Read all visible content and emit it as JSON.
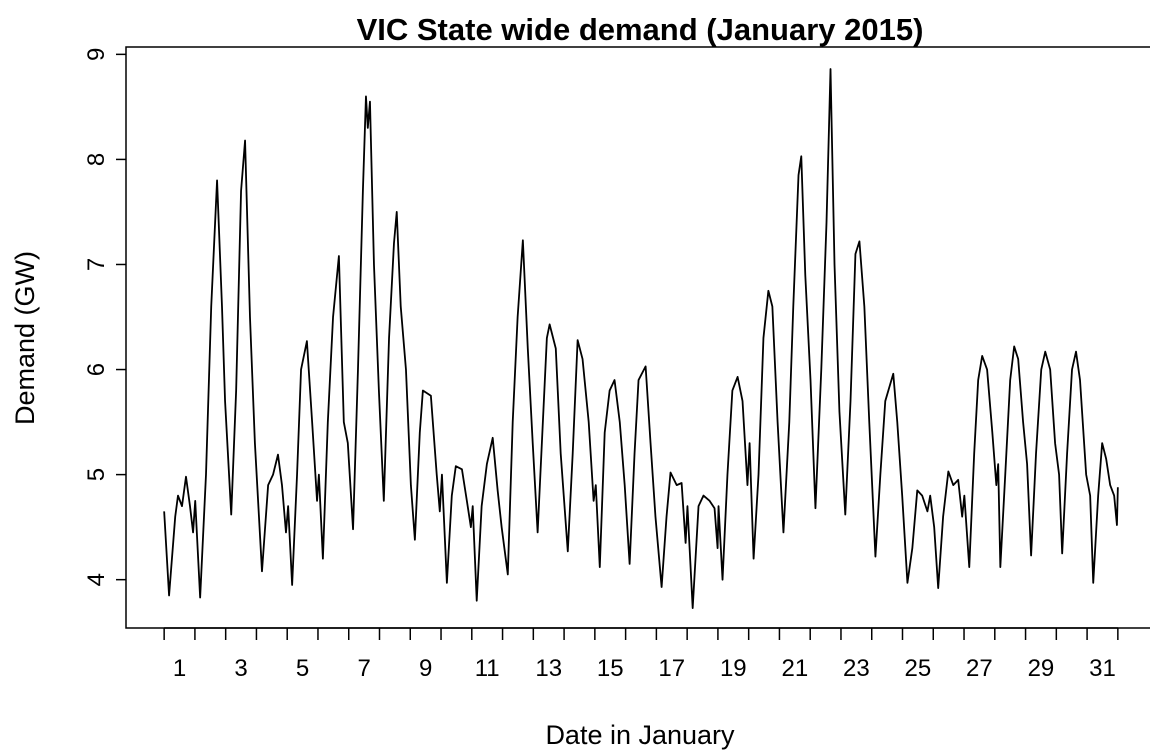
{
  "chart_data": {
    "type": "line",
    "title": "VIC State wide demand (January 2015)",
    "x_label": "Date in January",
    "y_label": "Demand (GW)",
    "xlim": [
      -0.24,
      33.24
    ],
    "ylim": [
      3.54,
      9.07
    ],
    "yticks": [
      4,
      5,
      6,
      7,
      8,
      9
    ],
    "xtick_marks": [
      1,
      2,
      3,
      4,
      5,
      6,
      7,
      8,
      9,
      10,
      11,
      12,
      13,
      14,
      15,
      16,
      17,
      18,
      19,
      20,
      21,
      22,
      23,
      24,
      25,
      26,
      27,
      28,
      29,
      30,
      31,
      32
    ],
    "xticks": [
      {
        "value": 1.5,
        "label": "1"
      },
      {
        "value": 3.5,
        "label": "3"
      },
      {
        "value": 5.5,
        "label": "5"
      },
      {
        "value": 7.5,
        "label": "7"
      },
      {
        "value": 9.5,
        "label": "9"
      },
      {
        "value": 11.5,
        "label": "11"
      },
      {
        "value": 13.5,
        "label": "13"
      },
      {
        "value": 15.5,
        "label": "15"
      },
      {
        "value": 17.5,
        "label": "17"
      },
      {
        "value": 19.5,
        "label": "19"
      },
      {
        "value": 21.5,
        "label": "21"
      },
      {
        "value": 23.5,
        "label": "23"
      },
      {
        "value": 25.5,
        "label": "25"
      },
      {
        "value": 27.5,
        "label": "27"
      },
      {
        "value": 29.5,
        "label": "29"
      },
      {
        "value": 31.5,
        "label": "31"
      }
    ],
    "series": [
      {
        "color": "#000000",
        "x": [
          1.0,
          1.16,
          1.36,
          1.45,
          1.58,
          1.71,
          1.84,
          1.94,
          2.01,
          2.17,
          2.36,
          2.53,
          2.72,
          2.88,
          2.98,
          3.18,
          3.34,
          3.5,
          3.63,
          3.79,
          3.95,
          4.18,
          4.38,
          4.54,
          4.7,
          4.83,
          4.96,
          5.03,
          5.16,
          5.32,
          5.45,
          5.64,
          5.81,
          5.97,
          6.03,
          6.16,
          6.32,
          6.49,
          6.68,
          6.84,
          6.97,
          7.14,
          7.3,
          7.46,
          7.56,
          7.62,
          7.69,
          7.82,
          7.98,
          8.14,
          8.31,
          8.47,
          8.56,
          8.69,
          8.86,
          9.02,
          9.15,
          9.31,
          9.41,
          9.67,
          9.86,
          9.96,
          10.03,
          10.19,
          10.35,
          10.48,
          10.68,
          10.84,
          10.97,
          11.03,
          11.16,
          11.32,
          11.49,
          11.68,
          11.84,
          11.97,
          12.17,
          12.33,
          12.49,
          12.66,
          12.82,
          12.98,
          13.14,
          13.31,
          13.44,
          13.53,
          13.73,
          13.89,
          14.12,
          14.28,
          14.44,
          14.6,
          14.8,
          14.96,
          15.03,
          15.16,
          15.32,
          15.48,
          15.64,
          15.81,
          15.97,
          16.13,
          16.29,
          16.42,
          16.65,
          16.81,
          16.97,
          17.17,
          17.33,
          17.46,
          17.66,
          17.82,
          17.95,
          18.01,
          18.18,
          18.37,
          18.53,
          18.73,
          18.89,
          18.99,
          19.02,
          19.15,
          19.31,
          19.47,
          19.64,
          19.8,
          19.96,
          20.03,
          20.16,
          20.32,
          20.48,
          20.64,
          20.77,
          20.94,
          21.13,
          21.32,
          21.45,
          21.62,
          21.71,
          21.84,
          22.01,
          22.17,
          22.36,
          22.53,
          22.66,
          22.79,
          22.95,
          23.14,
          23.31,
          23.47,
          23.6,
          23.76,
          23.92,
          24.12,
          24.28,
          24.44,
          24.7,
          24.83,
          24.99,
          25.16,
          25.32,
          25.48,
          25.64,
          25.81,
          25.9,
          26.03,
          26.16,
          26.32,
          26.49,
          26.65,
          26.81,
          26.94,
          27.01,
          27.17,
          27.33,
          27.46,
          27.59,
          27.75,
          27.92,
          28.05,
          28.11,
          28.18,
          28.34,
          28.5,
          28.63,
          28.76,
          28.92,
          29.05,
          29.18,
          29.34,
          29.51,
          29.64,
          29.8,
          29.96,
          30.09,
          30.19,
          30.35,
          30.51,
          30.64,
          30.77,
          30.97,
          31.1,
          31.2,
          31.36,
          31.49,
          31.62,
          31.75,
          31.88,
          31.97,
          32.0
        ],
        "values": [
          4.65,
          3.85,
          4.6,
          4.8,
          4.7,
          4.98,
          4.7,
          4.45,
          4.75,
          3.83,
          5.0,
          6.6,
          7.8,
          6.6,
          5.7,
          4.62,
          5.8,
          7.7,
          8.18,
          6.5,
          5.3,
          4.08,
          4.9,
          5.0,
          5.19,
          4.9,
          4.45,
          4.7,
          3.95,
          5.0,
          6.0,
          6.27,
          5.5,
          4.75,
          5.0,
          4.2,
          5.5,
          6.5,
          7.08,
          5.5,
          5.3,
          4.48,
          6.0,
          7.7,
          8.6,
          8.3,
          8.55,
          7.0,
          5.8,
          4.75,
          6.3,
          7.2,
          7.5,
          6.6,
          6.0,
          4.9,
          4.38,
          5.4,
          5.8,
          5.75,
          5.0,
          4.65,
          5.0,
          3.97,
          4.8,
          5.08,
          5.05,
          4.75,
          4.5,
          4.7,
          3.8,
          4.7,
          5.1,
          5.35,
          4.85,
          4.5,
          4.05,
          5.5,
          6.5,
          7.23,
          6.2,
          5.3,
          4.45,
          5.5,
          6.3,
          6.43,
          6.2,
          5.2,
          4.27,
          5.2,
          6.28,
          6.1,
          5.5,
          4.75,
          4.9,
          4.12,
          5.4,
          5.8,
          5.9,
          5.5,
          4.9,
          4.15,
          5.2,
          5.9,
          6.03,
          5.3,
          4.6,
          3.93,
          4.6,
          5.02,
          4.9,
          4.92,
          4.35,
          4.7,
          3.73,
          4.7,
          4.8,
          4.75,
          4.68,
          4.3,
          4.7,
          4.0,
          5.0,
          5.8,
          5.93,
          5.7,
          4.9,
          5.3,
          4.2,
          5.0,
          6.3,
          6.75,
          6.6,
          5.5,
          4.45,
          5.5,
          6.6,
          7.85,
          8.03,
          6.9,
          5.9,
          4.68,
          6.0,
          7.4,
          8.86,
          7.0,
          5.6,
          4.62,
          5.7,
          7.1,
          7.22,
          6.6,
          5.5,
          4.22,
          5.0,
          5.7,
          5.96,
          5.5,
          4.8,
          3.97,
          4.3,
          4.85,
          4.8,
          4.65,
          4.8,
          4.5,
          3.92,
          4.6,
          5.03,
          4.9,
          4.95,
          4.6,
          4.8,
          4.12,
          5.2,
          5.9,
          6.13,
          6.0,
          5.4,
          4.9,
          5.1,
          4.12,
          5.0,
          5.9,
          6.22,
          6.1,
          5.5,
          5.1,
          4.23,
          5.2,
          6.0,
          6.17,
          6.0,
          5.3,
          5.0,
          4.25,
          5.2,
          6.0,
          6.17,
          5.9,
          5.0,
          4.8,
          3.97,
          4.8,
          5.3,
          5.15,
          4.9,
          4.8,
          4.52,
          4.88
        ]
      }
    ]
  }
}
